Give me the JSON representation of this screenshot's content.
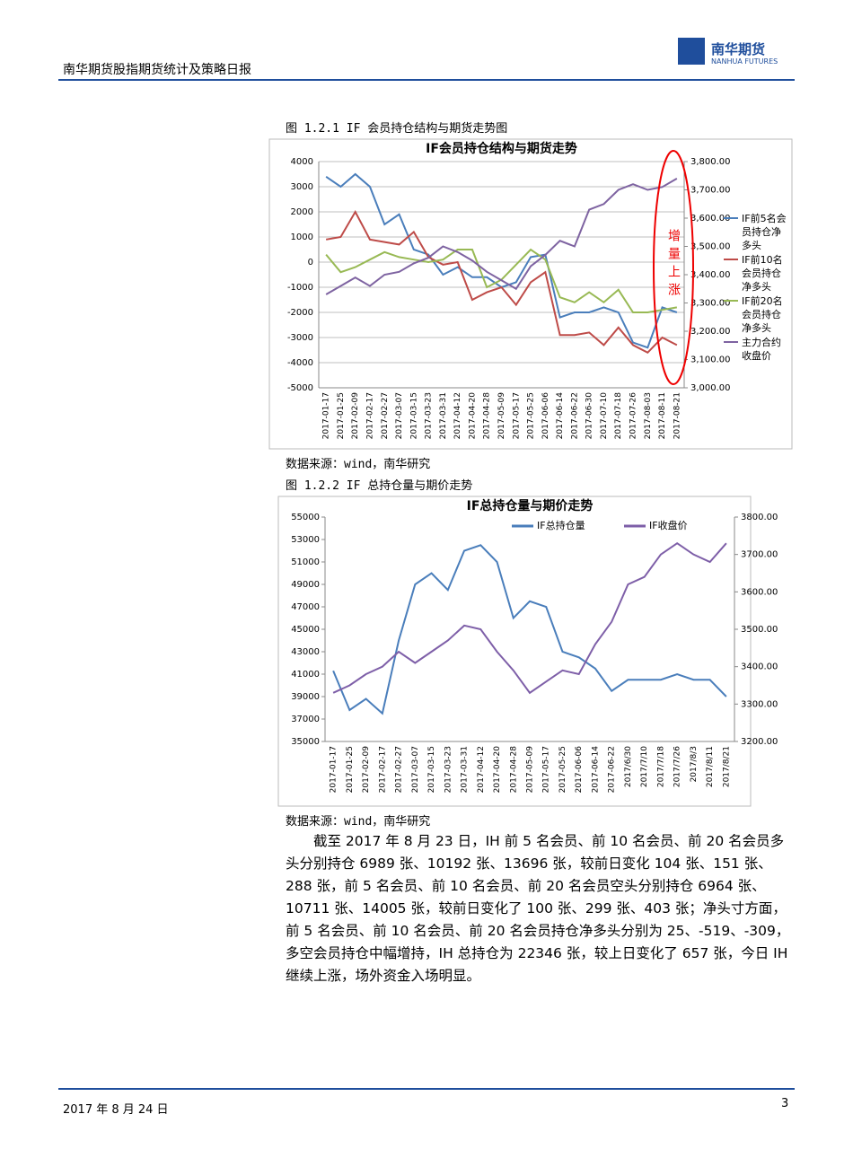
{
  "header": {
    "title": "南华期货股指期货统计及策略日报",
    "logo_cn": "南华期货",
    "logo_en": "NANHUA FUTURES"
  },
  "figures": [
    {
      "caption": "图 1.2.1 IF 会员持仓结构与期货走势图",
      "source": "数据来源：wind，南华研究"
    },
    {
      "caption": "图 1.2.2 IF 总持仓量与期价走势",
      "source": "数据来源：wind，南华研究"
    }
  ],
  "chart_data": [
    {
      "type": "line",
      "title": "IF会员持仓结构与期货走势",
      "grid": true,
      "legend": "right",
      "annotation": "增量上涨",
      "categories": [
        "2017-01-17",
        "2017-01-25",
        "2017-02-09",
        "2017-02-17",
        "2017-02-27",
        "2017-03-07",
        "2017-03-15",
        "2017-03-23",
        "2017-03-31",
        "2017-04-12",
        "2017-04-20",
        "2017-04-28",
        "2017-05-09",
        "2017-05-17",
        "2017-05-25",
        "2017-06-06",
        "2017-06-14",
        "2017-06-22",
        "2017-06-30",
        "2017-07-10",
        "2017-07-18",
        "2017-07-26",
        "2017-08-03",
        "2017-08-11",
        "2017-08-21"
      ],
      "ylim": [
        -5000,
        4000
      ],
      "yticks": [
        -5000,
        -4000,
        -3000,
        -2000,
        -1000,
        0,
        1000,
        2000,
        3000,
        4000
      ],
      "y2lim": [
        3000,
        3800
      ],
      "y2ticks": [
        {
          "value": 3000,
          "label": "3,000.00"
        },
        {
          "value": 3100,
          "label": "3,100.00"
        },
        {
          "value": 3200,
          "label": "3,200.00"
        },
        {
          "value": 3300,
          "label": "3,300.00"
        },
        {
          "value": 3400,
          "label": "3,400.00"
        },
        {
          "value": 3500,
          "label": "3,500.00"
        },
        {
          "value": 3600,
          "label": "3,600.00"
        },
        {
          "value": 3700,
          "label": "3,700.00"
        },
        {
          "value": 3800,
          "label": "3,800.00"
        }
      ],
      "series": [
        {
          "name": "IF前5名会员持仓净多头",
          "color": "#4a7ebb",
          "values": [
            3400,
            3000,
            3500,
            3000,
            1500,
            1900,
            500,
            300,
            -500,
            -200,
            -600,
            -600,
            -1000,
            -800,
            200,
            300,
            -2200,
            -2000,
            -2000,
            -1800,
            -2000,
            -3200,
            -3400,
            -1800,
            -2000
          ]
        },
        {
          "name": "IF前10名会员持仓净多头",
          "color": "#be4b48",
          "values": [
            900,
            1000,
            2000,
            900,
            800,
            700,
            1200,
            200,
            -100,
            0,
            -1500,
            -1200,
            -1000,
            -1700,
            -800,
            -400,
            -2900,
            -2900,
            -2800,
            -3300,
            -2600,
            -3300,
            -3600,
            -3000,
            -3300
          ]
        },
        {
          "name": "IF前20名会员持仓净多头",
          "color": "#98b954",
          "values": [
            300,
            -400,
            -200,
            100,
            400,
            200,
            100,
            0,
            100,
            500,
            500,
            -1000,
            -700,
            -100,
            500,
            100,
            -1400,
            -1600,
            -1200,
            -1600,
            -1100,
            -2000,
            -2000,
            -1900,
            -1800
          ]
        },
        {
          "name": "主力合约收盘价",
          "color": "#7e63a1",
          "axis": "y2",
          "values": [
            3330,
            3360,
            3390,
            3360,
            3400,
            3410,
            3440,
            3460,
            3500,
            3480,
            3450,
            3410,
            3380,
            3350,
            3430,
            3470,
            3520,
            3500,
            3630,
            3650,
            3700,
            3720,
            3700,
            3710,
            3740
          ]
        }
      ]
    },
    {
      "type": "line",
      "title": "IF总持仓量与期价走势",
      "grid": false,
      "legend": "top",
      "categories": [
        "2017-01-17",
        "2017-01-25",
        "2017-02-09",
        "2017-02-17",
        "2017-02-27",
        "2017-03-07",
        "2017-03-15",
        "2017-03-23",
        "2017-03-31",
        "2017-04-12",
        "2017-04-20",
        "2017-04-28",
        "2017-05-09",
        "2017-05-17",
        "2017-05-25",
        "2017-06-06",
        "2017-06-14",
        "2017-06-22",
        "2017/6/30",
        "2017/7/10",
        "2017/7/18",
        "2017/7/26",
        "2017/8/3",
        "2017/8/11",
        "2017/8/21"
      ],
      "ylim": [
        35000,
        55000
      ],
      "yticks": [
        35000,
        37000,
        39000,
        41000,
        43000,
        45000,
        47000,
        49000,
        51000,
        53000,
        55000
      ],
      "y2lim": [
        3200,
        3800
      ],
      "y2ticks": [
        {
          "value": 3200,
          "label": "3200.00"
        },
        {
          "value": 3300,
          "label": "3300.00"
        },
        {
          "value": 3400,
          "label": "3400.00"
        },
        {
          "value": 3500,
          "label": "3500.00"
        },
        {
          "value": 3600,
          "label": "3600.00"
        },
        {
          "value": 3700,
          "label": "3700.00"
        },
        {
          "value": 3800,
          "label": "3800.00"
        }
      ],
      "series": [
        {
          "name": "IF总持仓量",
          "color": "#4a7ebb",
          "values": [
            41300,
            37800,
            38800,
            37500,
            44000,
            49000,
            50000,
            48500,
            52000,
            52500,
            51000,
            46000,
            47500,
            47000,
            43000,
            42500,
            41500,
            39500,
            40500,
            40500,
            40500,
            41000,
            40500,
            40500,
            39000
          ]
        },
        {
          "name": "IF收盘价",
          "color": "#7e5fa8",
          "axis": "y2",
          "values": [
            3330,
            3350,
            3380,
            3400,
            3440,
            3410,
            3440,
            3470,
            3510,
            3500,
            3440,
            3390,
            3330,
            3360,
            3390,
            3380,
            3460,
            3520,
            3620,
            3640,
            3700,
            3730,
            3700,
            3680,
            3730
          ]
        }
      ]
    }
  ],
  "body": "截至 2017 年 8 月 23 日，IH 前 5 名会员、前 10 名会员、前 20 名会员多头分别持仓 6989 张、10192 张、13696 张，较前日变化 104 张、151 张、288 张，前 5 名会员、前 10 名会员、前 20 名会员空头分别持仓 6964 张、10711 张、14005 张，较前日变化了 100 张、299 张、403 张；净头寸方面，前 5 名会员、前 10 名会员、前 20 名会员持仓净多头分别为 25、-519、-309，多空会员持仓中幅增持，IH 总持仓为 22346 张，较上日变化了 657 张，今日 IH 继续上涨，场外资金入场明显。",
  "footer": {
    "date": "2017 年 8 月 24 日",
    "page": 3
  }
}
